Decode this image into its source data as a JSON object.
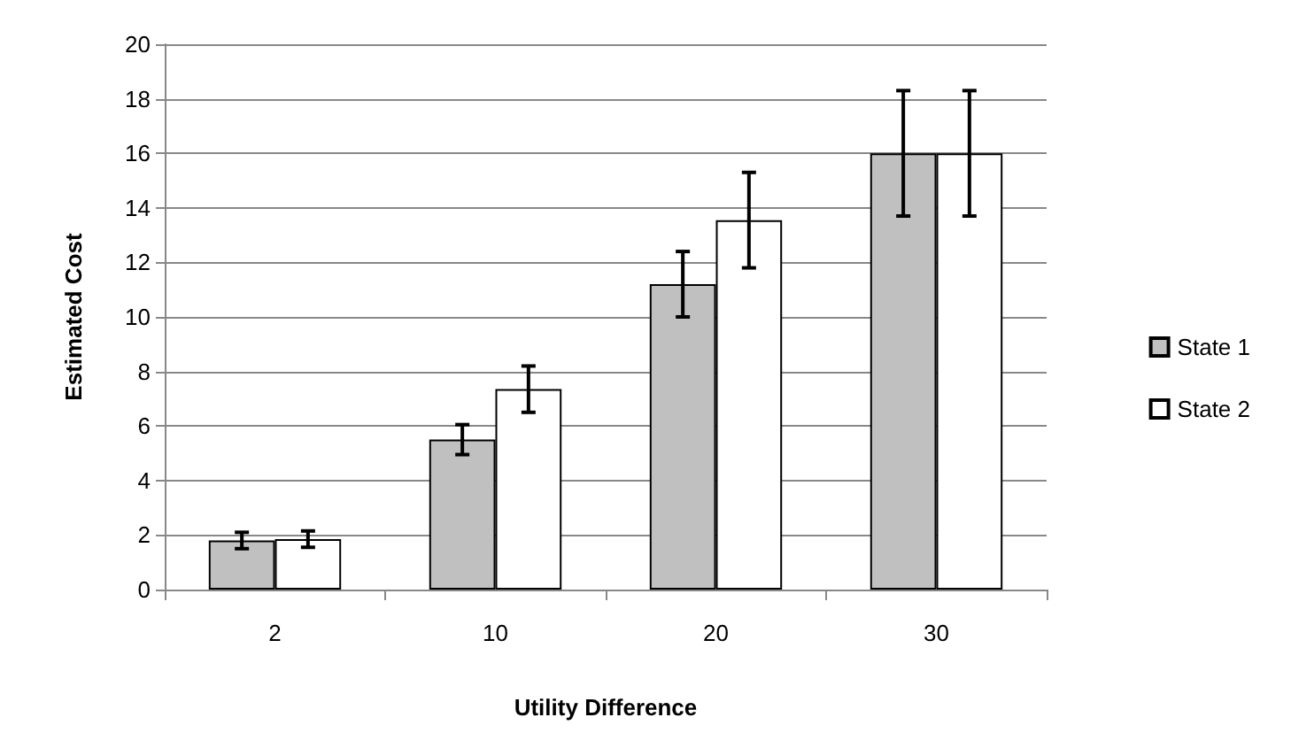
{
  "chart_data": {
    "type": "bar",
    "xlabel": "Utility Difference",
    "ylabel": "Estimated Cost",
    "categories": [
      "2",
      "10",
      "20",
      "30"
    ],
    "series": [
      {
        "name": "State 1",
        "color": "#c0c0c0",
        "values": [
          1.8,
          5.5,
          11.2,
          16.0
        ],
        "errors": [
          0.3,
          0.55,
          1.2,
          2.3
        ]
      },
      {
        "name": "State 2",
        "color": "#ffffff",
        "values": [
          1.85,
          7.35,
          13.55,
          16.0
        ],
        "errors": [
          0.3,
          0.85,
          1.75,
          2.3
        ]
      }
    ],
    "ylim": [
      0,
      20
    ],
    "yticks": [
      0,
      2,
      4,
      6,
      8,
      10,
      12,
      14,
      16,
      18,
      20
    ],
    "grid": "y",
    "legend": "right"
  }
}
